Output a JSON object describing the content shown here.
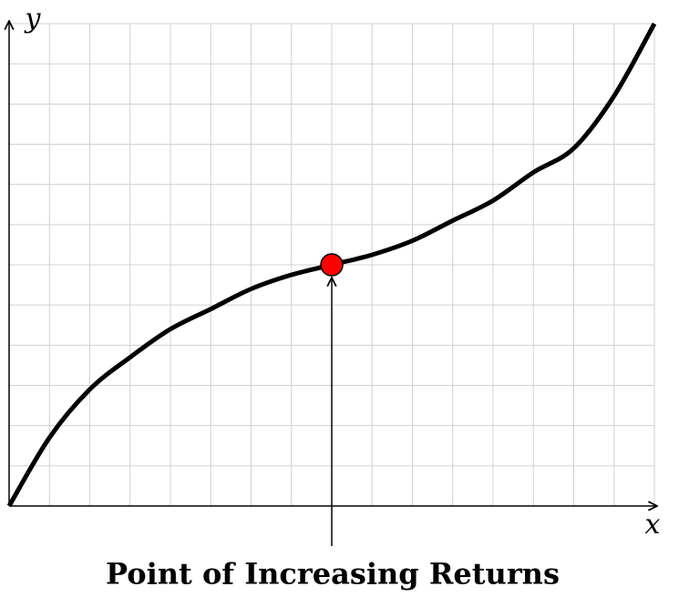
{
  "chart_data": {
    "type": "line",
    "x_label": "x",
    "y_label": "y",
    "x": [
      0,
      1,
      2,
      3,
      4,
      5,
      6,
      7,
      8,
      9,
      10,
      11,
      12,
      13,
      14,
      15,
      16
    ],
    "series": [
      {
        "color": "#000000",
        "values": [
          0,
          1.7,
          2.9,
          3.7,
          4.4,
          4.9,
          5.4,
          5.75,
          6,
          6.25,
          6.6,
          7.1,
          7.6,
          8.3,
          8.9,
          10.2,
          12
        ]
      }
    ],
    "xlim": [
      0,
      16
    ],
    "ylim": [
      0,
      12
    ],
    "grid": true,
    "annotation": {
      "text": "Point of Increasing Returns",
      "x": 8,
      "y": 6,
      "color": "#ff0000"
    }
  }
}
